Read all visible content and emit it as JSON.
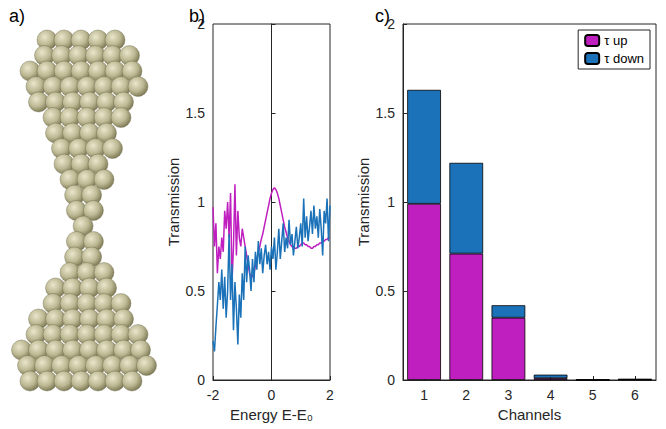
{
  "chart_data": [
    {
      "type": "structure",
      "title": "a)"
    },
    {
      "type": "line",
      "title": "b)",
      "xlabel": "Energy E-E₀",
      "ylabel": "Transmission",
      "xlim": [
        -2,
        2
      ],
      "xticks": [
        -2,
        0,
        2
      ],
      "ylim": [
        0,
        2
      ],
      "yticks": [
        0,
        0.5,
        1,
        1.5,
        2
      ],
      "grid": false,
      "x": [
        -2,
        -1.95,
        -1.9,
        -1.85,
        -1.8,
        -1.75,
        -1.7,
        -1.65,
        -1.6,
        -1.55,
        -1.5,
        -1.45,
        -1.4,
        -1.35,
        -1.3,
        -1.25,
        -1.2,
        -1.15,
        -1.1,
        -1.05,
        -1,
        -0.95,
        -0.9,
        -0.85,
        -0.8,
        -0.75,
        -0.7,
        -0.65,
        -0.6,
        -0.55,
        -0.5,
        -0.45,
        -0.4,
        -0.35,
        -0.3,
        -0.25,
        -0.2,
        -0.15,
        -0.1,
        -0.05,
        0,
        0.05,
        0.1,
        0.15,
        0.2,
        0.25,
        0.3,
        0.35,
        0.4,
        0.45,
        0.5,
        0.55,
        0.6,
        0.65,
        0.7,
        0.75,
        0.8,
        0.85,
        0.9,
        0.95,
        1,
        1.05,
        1.1,
        1.15,
        1.2,
        1.25,
        1.3,
        1.35,
        1.4,
        1.45,
        1.5,
        1.55,
        1.6,
        1.65,
        1.7,
        1.75,
        1.8,
        1.85,
        1.9,
        1.95,
        2
      ],
      "series": [
        {
          "color": "#c01fc0",
          "values": [
            0.97,
            0.75,
            0.88,
            0.6,
            0.75,
            0.68,
            0.8,
            0.72,
            0.95,
            0.85,
            1.0,
            0.8,
            1.05,
            0.55,
            0.75,
            1.1,
            0.7,
            0.95,
            0.8,
            0.75,
            0.85,
            0.8,
            0.75,
            0.7,
            0.65,
            0.6,
            0.58,
            0.58,
            0.6,
            0.64,
            0.68,
            0.72,
            0.75,
            0.79,
            0.82,
            0.86,
            0.9,
            0.94,
            0.98,
            1.02,
            1.05,
            1.07,
            1.08,
            1.07,
            1.05,
            1.02,
            0.98,
            0.94,
            0.9,
            0.86,
            0.83,
            0.8,
            0.78,
            0.76,
            0.75,
            0.74,
            0.74,
            0.74,
            0.75,
            0.75,
            0.76,
            0.77,
            0.77,
            0.76,
            0.76,
            0.75,
            0.75,
            0.74,
            0.74,
            0.75,
            0.75,
            0.76,
            0.76,
            0.77,
            0.77,
            0.78,
            0.78,
            0.79,
            0.79,
            0.8,
            0.8
          ]
        },
        {
          "color": "#1b72b8",
          "values": [
            0.22,
            0.16,
            0.3,
            0.42,
            0.55,
            0.45,
            0.62,
            0.4,
            0.58,
            0.35,
            0.5,
            0.82,
            0.45,
            0.65,
            0.28,
            0.55,
            0.4,
            0.2,
            0.48,
            0.35,
            0.6,
            0.45,
            0.75,
            0.55,
            0.7,
            0.62,
            0.5,
            0.68,
            0.55,
            0.72,
            0.62,
            0.78,
            0.65,
            0.74,
            0.6,
            0.7,
            0.76,
            0.65,
            0.72,
            0.62,
            0.75,
            0.68,
            0.8,
            0.62,
            0.72,
            0.85,
            0.68,
            0.78,
            0.88,
            0.72,
            0.8,
            0.74,
            0.9,
            0.76,
            0.82,
            0.7,
            0.78,
            0.86,
            0.74,
            0.8,
            0.88,
            0.75,
            1.02,
            0.8,
            0.92,
            0.78,
            0.86,
            0.95,
            0.82,
            0.98,
            0.85,
            0.92,
            0.8,
            0.96,
            0.85,
            0.7,
            0.95,
            0.88,
            1.02,
            0.78,
            0.98
          ]
        }
      ]
    },
    {
      "type": "bar",
      "title": "c)",
      "xlabel": "Channels",
      "ylabel": "Transmission",
      "categories": [
        1,
        2,
        3,
        4,
        5,
        6
      ],
      "ylim": [
        0,
        2
      ],
      "yticks": [
        0,
        0.5,
        1,
        1.5,
        2
      ],
      "grid": false,
      "stacked": true,
      "legend": "top-right",
      "series": [
        {
          "name": "τ up",
          "color": "#c01fc0",
          "values": [
            0.99,
            0.71,
            0.35,
            0.01,
            0,
            0.003
          ]
        },
        {
          "name": "τ down",
          "color": "#1b72b8",
          "values": [
            0.64,
            0.51,
            0.07,
            0.02,
            0.003,
            0.002
          ]
        }
      ]
    }
  ]
}
